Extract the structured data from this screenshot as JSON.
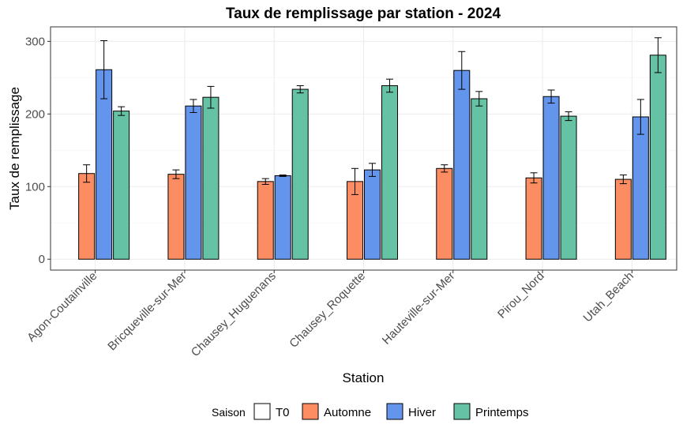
{
  "chart_data": {
    "type": "bar",
    "title": "Taux de remplissage par station  - 2024",
    "xlabel": "Station",
    "ylabel": "Taux de remplissage",
    "ylim": [
      -15,
      320
    ],
    "yticks": [
      0,
      100,
      200,
      300
    ],
    "grid": true,
    "categories": [
      "Agon-Coutainville",
      "Bricqueville-sur-Mer",
      "Chausey_Huguenans",
      "Chausey_Roquette",
      "Hauteville-sur-Mer",
      "Pirou_Nord",
      "Utah_Beach"
    ],
    "legend": {
      "title": "Saison",
      "position": "bottom",
      "entries": [
        {
          "name": "T0",
          "color": "#ffffff"
        },
        {
          "name": "Automne",
          "color": "#fc8d62"
        },
        {
          "name": "Hiver",
          "color": "#6495ed"
        },
        {
          "name": "Printemps",
          "color": "#66c2a5"
        }
      ]
    },
    "series": [
      {
        "name": "T0",
        "color": "#ffffff",
        "values": [
          0,
          0,
          0,
          0,
          0,
          0,
          0
        ],
        "errors": [
          0,
          0,
          0,
          0,
          0,
          0,
          0
        ]
      },
      {
        "name": "Automne",
        "color": "#fc8d62",
        "values": [
          118,
          117,
          107,
          107,
          125,
          112,
          110
        ],
        "errors": [
          12,
          6,
          4,
          18,
          5,
          7,
          6
        ]
      },
      {
        "name": "Hiver",
        "color": "#6495ed",
        "values": [
          261,
          211,
          115,
          123,
          260,
          224,
          196
        ],
        "errors": [
          40,
          9,
          1,
          9,
          26,
          9,
          24
        ]
      },
      {
        "name": "Printemps",
        "color": "#66c2a5",
        "values": [
          204,
          223,
          234,
          239,
          221,
          197,
          281
        ],
        "errors": [
          6,
          15,
          5,
          9,
          10,
          6,
          24
        ]
      }
    ]
  }
}
